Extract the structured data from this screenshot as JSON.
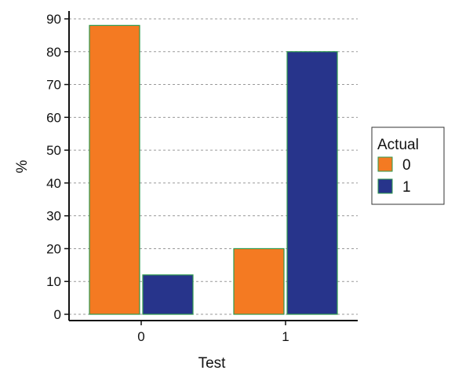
{
  "chart_data": {
    "type": "bar",
    "categories": [
      "0",
      "1"
    ],
    "series": [
      {
        "name": "0",
        "values": [
          88,
          20
        ],
        "color": "#f47a22"
      },
      {
        "name": "1",
        "values": [
          12,
          80
        ],
        "color": "#27348b"
      }
    ],
    "xlabel": "Test",
    "ylabel": "%",
    "ylim": [
      0,
      90
    ],
    "yticks": [
      0,
      10,
      20,
      30,
      40,
      50,
      60,
      70,
      80,
      90
    ],
    "grid": true,
    "legend": {
      "title": "Actual",
      "placement": "right"
    },
    "bar_edge_color": "#2e9a4e"
  }
}
